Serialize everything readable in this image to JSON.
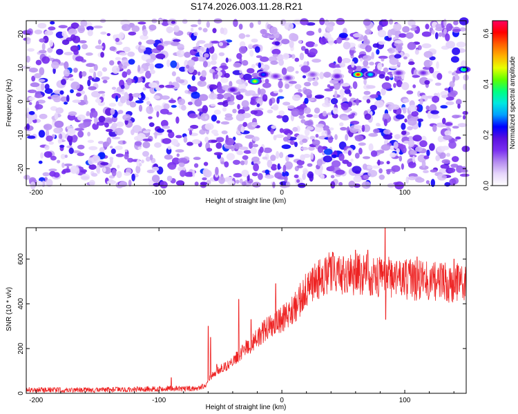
{
  "title": "S174.2026.003.11.28.R21",
  "colors": {
    "snr_line": "#ee2222",
    "axis": "#000000",
    "spectrogram_background": "#ffffff",
    "colormap": [
      "#ffffff",
      "#e6d6fb",
      "#b58cf0",
      "#7a2ff0",
      "#5a10e0",
      "#0000ff",
      "#00a0ff",
      "#00e8e0",
      "#00ff80",
      "#60ff00",
      "#e8ff00",
      "#ffb000",
      "#ff6000",
      "#ff0000",
      "#ff0060"
    ]
  },
  "chart_data": [
    {
      "type": "heatmap",
      "title": "S174.2026.003.11.28.R21",
      "xlabel": "Height of straight line (km)",
      "ylabel": "Frequency (Hz)",
      "xlim": [
        -208,
        150
      ],
      "ylim": [
        -25,
        24
      ],
      "xticks": [
        -200,
        -100,
        0,
        100
      ],
      "xtick_labels": [
        "-200",
        "-100",
        "0",
        "100"
      ],
      "yticks": [
        -20,
        -10,
        0,
        10,
        20
      ],
      "ytick_labels": [
        "-20",
        "-10",
        "0",
        "10",
        "20"
      ],
      "colorbar": {
        "label": "Normalized spectral amplitude",
        "range": [
          0.0,
          0.65
        ],
        "ticks": [
          0.0,
          0.2,
          0.4,
          0.6
        ],
        "tick_labels": [
          "0.0",
          "0.2",
          "0.4",
          "0.6"
        ]
      },
      "signal_track": [
        {
          "x": -40,
          "y": 3.5,
          "amp": 0.18
        },
        {
          "x": -22,
          "y": 6.0,
          "amp": 0.45
        },
        {
          "x": -15,
          "y": 8.0,
          "amp": 0.25
        },
        {
          "x": -5,
          "y": 7.5,
          "amp": 0.14
        },
        {
          "x": 5,
          "y": 7.0,
          "amp": 0.14
        },
        {
          "x": 25,
          "y": 8.0,
          "amp": 0.12
        },
        {
          "x": 45,
          "y": 7.5,
          "amp": 0.16
        },
        {
          "x": 62,
          "y": 8.0,
          "amp": 0.58
        },
        {
          "x": 72,
          "y": 8.0,
          "amp": 0.32
        },
        {
          "x": 95,
          "y": 8.5,
          "amp": 0.15
        },
        {
          "x": 115,
          "y": 8.5,
          "amp": 0.14
        },
        {
          "x": 148,
          "y": 9.5,
          "amp": 0.38
        }
      ]
    },
    {
      "type": "line",
      "xlabel": "Height of straight line (km)",
      "ylabel": "SNR (10 * v/v)",
      "xlim": [
        -208,
        150
      ],
      "ylim": [
        0,
        740
      ],
      "xticks": [
        -200,
        -100,
        0,
        100
      ],
      "xtick_labels": [
        "-200",
        "-100",
        "0",
        "100"
      ],
      "yticks": [
        0,
        200,
        400,
        600
      ],
      "ytick_labels": [
        "0",
        "200",
        "400",
        "600"
      ],
      "series": [
        {
          "name": "SNR",
          "trend": {
            "x": [
              -208,
              -150,
              -100,
              -90,
              -80,
              -70,
              -62,
              -60,
              -55,
              -50,
              -45,
              -40,
              -35,
              -30,
              -25,
              -20,
              -10,
              0,
              10,
              20,
              30,
              40,
              50,
              60,
              70,
              80,
              90,
              100,
              120,
              150
            ],
            "y": [
              15,
              15,
              20,
              22,
              20,
              22,
              35,
              60,
              90,
              110,
              120,
              150,
              170,
              200,
              220,
              250,
              300,
              330,
              380,
              460,
              510,
              540,
              540,
              530,
              530,
              520,
              520,
              510,
              500,
              490
            ]
          },
          "spikes": [
            {
              "x": -90,
              "y": 70
            },
            {
              "x": -60,
              "y": 300
            },
            {
              "x": -58,
              "y": 250
            },
            {
              "x": -53,
              "y": 130
            },
            {
              "x": -35,
              "y": 420
            },
            {
              "x": -25,
              "y": 330
            },
            {
              "x": -5,
              "y": 490
            },
            {
              "x": 40,
              "y": 610
            },
            {
              "x": 60,
              "y": 640
            },
            {
              "x": 70,
              "y": 640
            },
            {
              "x": 84,
              "y": 740
            },
            {
              "x": 84.5,
              "y": 330
            },
            {
              "x": 110,
              "y": 610
            },
            {
              "x": 140,
              "y": 600
            }
          ]
        }
      ]
    }
  ]
}
